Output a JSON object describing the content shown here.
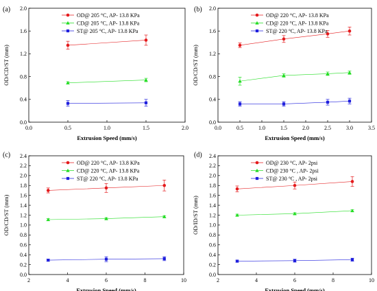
{
  "chart_data": [
    {
      "type": "line",
      "panel_label": "(a)",
      "xlabel": "Extrusion Speed (mm/s)",
      "ylabel": "OD/CD/ST (mm)",
      "xlim": [
        0.0,
        2.0
      ],
      "ylim": [
        0.0,
        2.0
      ],
      "xticks": [
        "0.0",
        "0.5",
        "1.0",
        "1.5",
        "2.0"
      ],
      "yticks": [
        "0.0",
        "0.4",
        "0.8",
        "1.2",
        "1.6",
        "2.0"
      ],
      "x": [
        0.5,
        1.5
      ],
      "legend_position": "top-left",
      "series": [
        {
          "name": "OD@ 205 °C, AP- 13.8 KPa",
          "color": "#e41a1c",
          "marker": "circle",
          "values": [
            1.35,
            1.44
          ],
          "errors": [
            0.07,
            0.09
          ]
        },
        {
          "name": "CD@ 205 °C, AP- 13.8 KPa",
          "color": "#22dd22",
          "marker": "triangle",
          "values": [
            0.69,
            0.74
          ],
          "errors": [
            0.02,
            0.03
          ]
        },
        {
          "name": "ST@ 205 °C, AP- 13.8 KPa",
          "color": "#1f1fdd",
          "marker": "square",
          "values": [
            0.33,
            0.34
          ],
          "errors": [
            0.05,
            0.06
          ]
        }
      ]
    },
    {
      "type": "line",
      "panel_label": "(b)",
      "xlabel": "Extrusion Speed (mm/s)",
      "ylabel": "OD/CD/ST (mm)",
      "xlim": [
        0.0,
        3.5
      ],
      "ylim": [
        0.0,
        2.0
      ],
      "xticks": [
        "0.0",
        "0.5",
        "1.0",
        "1.5",
        "2.0",
        "2.5",
        "3.0",
        "3.5"
      ],
      "yticks": [
        "0.0",
        "0.4",
        "0.8",
        "1.2",
        "1.6",
        "2.0"
      ],
      "x": [
        0.5,
        1.5,
        2.5,
        3.0
      ],
      "legend_position": "top-left",
      "series": [
        {
          "name": "OD@ 220 °C, AP- 13.8 KPa",
          "color": "#e41a1c",
          "marker": "circle",
          "values": [
            1.35,
            1.46,
            1.55,
            1.6
          ],
          "errors": [
            0.04,
            0.06,
            0.06,
            0.07
          ]
        },
        {
          "name": "CD@ 220 °C, AP- 13.8 KPa",
          "color": "#22dd22",
          "marker": "triangle",
          "values": [
            0.72,
            0.82,
            0.85,
            0.87
          ],
          "errors": [
            0.07,
            0.03,
            0.03,
            0.03
          ]
        },
        {
          "name": "ST@ 220 °C, AP- 13.8 KPa",
          "color": "#1f1fdd",
          "marker": "square",
          "values": [
            0.32,
            0.32,
            0.35,
            0.37
          ],
          "errors": [
            0.04,
            0.04,
            0.05,
            0.05
          ]
        }
      ]
    },
    {
      "type": "line",
      "panel_label": "(c)",
      "xlabel": "Extrusion Speed (mm/s)",
      "ylabel": "OD/CD/ST (mm)",
      "xlim": [
        2,
        10
      ],
      "ylim": [
        0.0,
        2.4
      ],
      "xticks": [
        "2",
        "4",
        "6",
        "8",
        "10"
      ],
      "yticks": [
        "0.0",
        "0.2",
        "0.4",
        "0.6",
        "0.8",
        "1.0",
        "1.2",
        "1.4",
        "1.6",
        "1.8",
        "2.0",
        "2.2",
        "2.4"
      ],
      "x": [
        3,
        6,
        9
      ],
      "legend_position": "top-left",
      "series": [
        {
          "name": "OD@ 220 °C, AP- 13.8 KPa",
          "color": "#e41a1c",
          "marker": "circle",
          "values": [
            1.7,
            1.75,
            1.8
          ],
          "errors": [
            0.05,
            0.09,
            0.11
          ]
        },
        {
          "name": "CD@ 220 °C, AP- 13.8 KPa",
          "color": "#22dd22",
          "marker": "triangle",
          "values": [
            1.11,
            1.13,
            1.17
          ],
          "errors": [
            0.02,
            0.02,
            0.02
          ]
        },
        {
          "name": "ST@ 220 °C, AP- 13.8 KPa",
          "color": "#1f1fdd",
          "marker": "square",
          "values": [
            0.29,
            0.31,
            0.32
          ],
          "errors": [
            0.02,
            0.05,
            0.04
          ]
        }
      ]
    },
    {
      "type": "line",
      "panel_label": "(d)",
      "xlabel": "Extrusion Speed (mm/s)",
      "ylabel": "OD/ID/ST (mm)",
      "xlim": [
        2,
        10
      ],
      "ylim": [
        0.0,
        2.4
      ],
      "xticks": [
        "2",
        "4",
        "6",
        "8",
        "10"
      ],
      "yticks": [
        "0.0",
        "0.2",
        "0.4",
        "0.6",
        "0.8",
        "1.0",
        "1.2",
        "1.4",
        "1.6",
        "1.8",
        "2.0",
        "2.2",
        "2.4"
      ],
      "x": [
        3,
        6,
        9
      ],
      "legend_position": "top-left",
      "series": [
        {
          "name": "OD@ 230 °C, AP- 2psi",
          "color": "#e41a1c",
          "marker": "circle",
          "values": [
            1.73,
            1.8,
            1.88
          ],
          "errors": [
            0.06,
            0.07,
            0.1
          ]
        },
        {
          "name": "CD@ 230 °C , AP- 2psi",
          "color": "#22dd22",
          "marker": "triangle",
          "values": [
            1.2,
            1.23,
            1.29
          ],
          "errors": [
            0.02,
            0.02,
            0.02
          ]
        },
        {
          "name": "ST@ 230 °C , AP- 2psi",
          "color": "#1f1fdd",
          "marker": "square",
          "values": [
            0.27,
            0.28,
            0.3
          ],
          "errors": [
            0.02,
            0.03,
            0.03
          ]
        }
      ]
    }
  ]
}
